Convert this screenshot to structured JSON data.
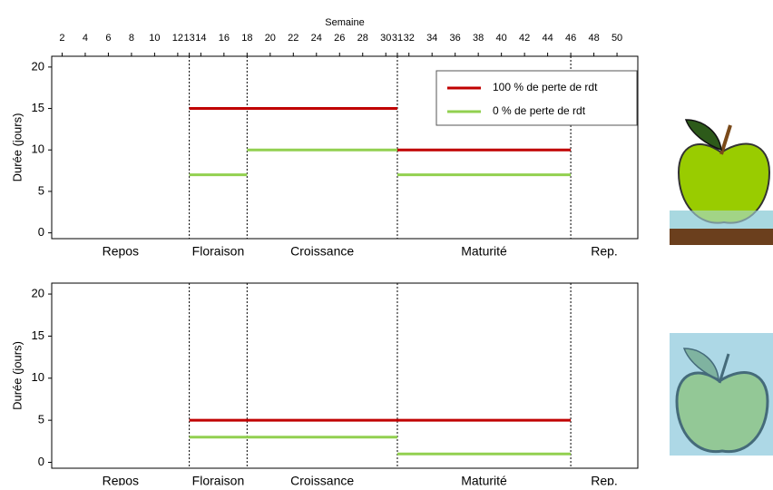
{
  "chart_data": [
    {
      "type": "segment",
      "x_label": "Semaine",
      "ylabel": "Durée (jours)",
      "xlim": [
        1.1,
        51.8
      ],
      "xticks": [
        2,
        4,
        6,
        8,
        10,
        12,
        13,
        14,
        16,
        18,
        20,
        22,
        24,
        26,
        28,
        30,
        31,
        32,
        34,
        36,
        38,
        40,
        42,
        44,
        46,
        48,
        50
      ],
      "ylim": [
        -0.7,
        21.3
      ],
      "yticks": [
        0,
        5,
        10,
        15,
        20
      ],
      "boundaries": [
        13,
        18,
        31,
        46
      ],
      "phases": [
        "Repos",
        "Floraison",
        "Croissance",
        "Maturité",
        "Rep."
      ],
      "legend": "upper right",
      "series": [
        {
          "name": "100 % de perte de rdt",
          "color": "#c00000",
          "x_start": [
            13,
            31
          ],
          "x_end": [
            31,
            46
          ],
          "values": [
            15,
            10
          ]
        },
        {
          "name": "0 % de perte de rdt",
          "color": "#92d050",
          "x_start": [
            13,
            18,
            31
          ],
          "x_end": [
            18,
            31,
            46
          ],
          "values": [
            7,
            10,
            7
          ]
        }
      ]
    },
    {
      "type": "segment",
      "ylabel": "Durée (jours)",
      "xlim": [
        1.1,
        51.8
      ],
      "ylim": [
        -0.7,
        21.3
      ],
      "yticks": [
        0,
        5,
        10,
        15,
        20
      ],
      "boundaries": [
        13,
        18,
        31,
        46
      ],
      "phases": [
        "Repos",
        "Floraison",
        "Croissance",
        "Maturité",
        "Rep."
      ],
      "series": [
        {
          "color": "#c00000",
          "x_start": [
            13
          ],
          "x_end": [
            46
          ],
          "values": [
            5
          ]
        },
        {
          "color": "#92d050",
          "x_start": [
            13,
            31
          ],
          "x_end": [
            31,
            46
          ],
          "values": [
            3,
            1
          ]
        }
      ]
    }
  ]
}
